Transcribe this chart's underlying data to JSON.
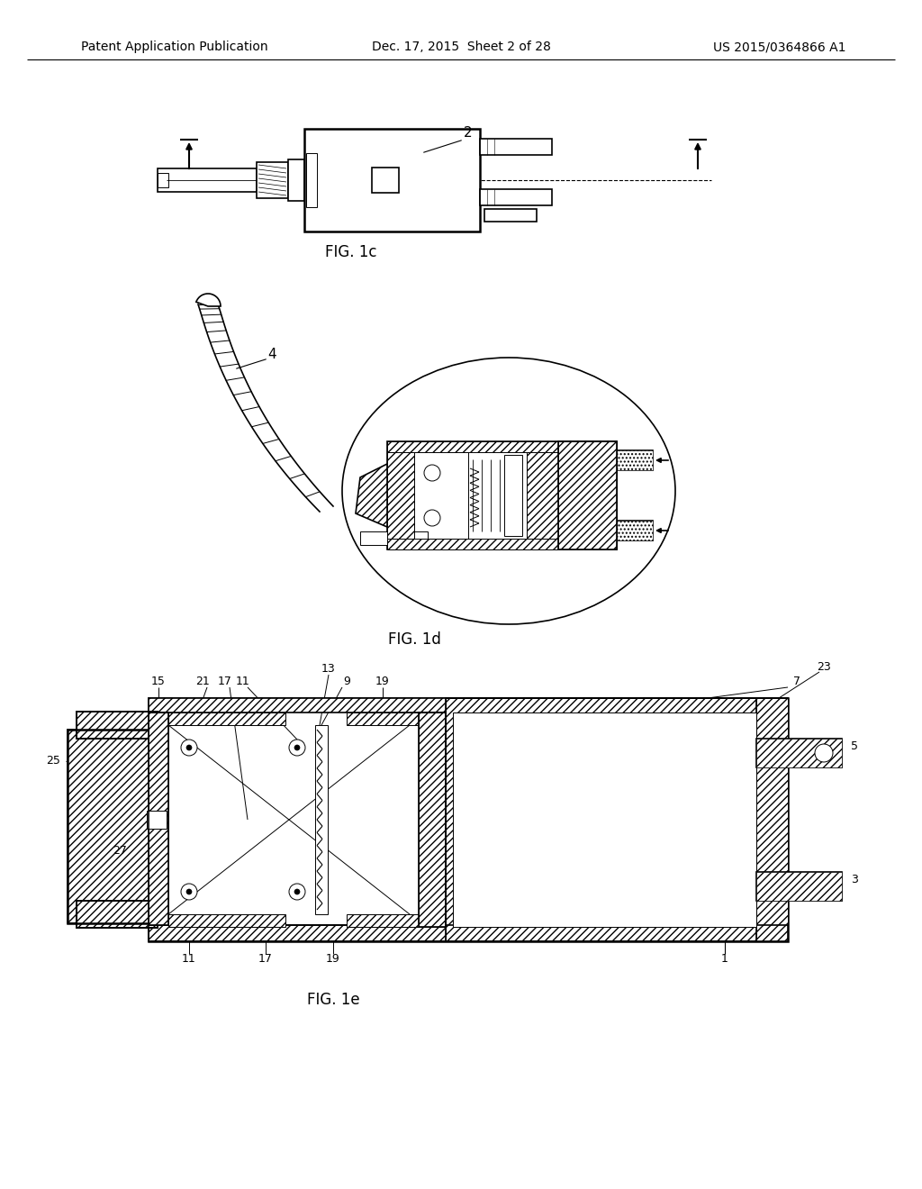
{
  "title_left": "Patent Application Publication",
  "title_center": "Dec. 17, 2015  Sheet 2 of 28",
  "title_right": "US 2015/0364866 A1",
  "fig1c_label": "FIG. 1c",
  "fig1d_label": "FIG. 1d",
  "fig1e_label": "FIG. 1e",
  "bg_color": "#ffffff",
  "labels": {
    "2": "2",
    "4": "4",
    "1": "1",
    "3": "3",
    "5": "5",
    "7": "7",
    "9": "9",
    "11": "11",
    "13": "13",
    "15": "15",
    "17": "17",
    "19": "19",
    "21": "21",
    "23": "23",
    "25": "25",
    "27": "27"
  }
}
